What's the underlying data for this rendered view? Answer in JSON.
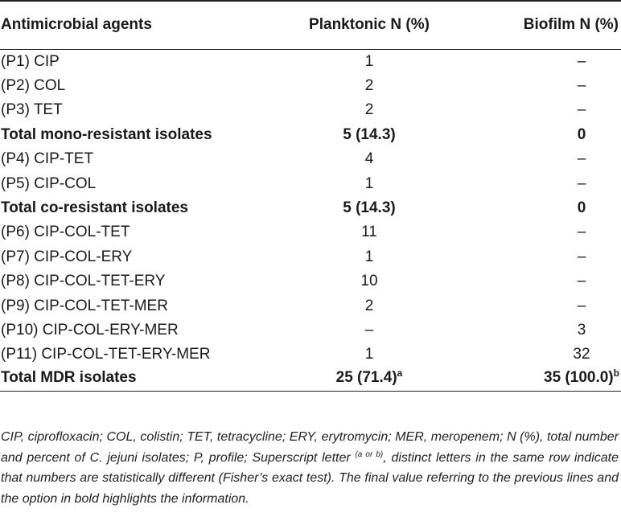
{
  "table": {
    "headers": [
      "Antimicrobial agents",
      "Planktonic N (%)",
      "Biofilm N (%)"
    ],
    "rows": [
      {
        "name": "(P1) CIP",
        "planktonic": "1",
        "biofilm": "–",
        "bold": false
      },
      {
        "name": "(P2) COL",
        "planktonic": "2",
        "biofilm": "–",
        "bold": false
      },
      {
        "name": "(P3) TET",
        "planktonic": "2",
        "biofilm": "–",
        "bold": false
      },
      {
        "name": "Total mono-resistant isolates",
        "planktonic": "5 (14.3)",
        "biofilm": "0",
        "bold": true
      },
      {
        "name": "(P4) CIP-TET",
        "planktonic": "4",
        "biofilm": "–",
        "bold": false
      },
      {
        "name": "(P5) CIP-COL",
        "planktonic": "1",
        "biofilm": "–",
        "bold": false
      },
      {
        "name": "Total co-resistant isolates",
        "planktonic": "5 (14.3)",
        "biofilm": "0",
        "bold": true
      },
      {
        "name": "(P6) CIP-COL-TET",
        "planktonic": "11",
        "biofilm": "–",
        "bold": false
      },
      {
        "name": "(P7) CIP-COL-ERY",
        "planktonic": "1",
        "biofilm": "–",
        "bold": false
      },
      {
        "name": "(P8) CIP-COL-TET-ERY",
        "planktonic": "10",
        "biofilm": "–",
        "bold": false
      },
      {
        "name": "(P9) CIP-COL-TET-MER",
        "planktonic": "2",
        "biofilm": "–",
        "bold": false
      },
      {
        "name": "(P10) CIP-COL-ERY-MER",
        "planktonic": "–",
        "biofilm": "3",
        "bold": false
      },
      {
        "name": "(P11) CIP-COL-TET-ERY-MER",
        "planktonic": "1",
        "biofilm": "32",
        "bold": false
      },
      {
        "name": "Total MDR isolates",
        "planktonic": "25 (71.4)",
        "planktonic_sup": "a",
        "biofilm": "35 (100.0)",
        "biofilm_sup": "b",
        "bold": true
      }
    ]
  },
  "footnote": {
    "part1": "CIP, ciprofloxacin; COL, colistin; TET, tetracycline; ERY, erytromycin; MER, meropenem; N (%), total number and percent of C. jejuni isolates; P, profile; Superscript letter ",
    "sup": "(a or b)",
    "part2": ", distinct letters in the same row indicate that numbers are statistically different (Fisher’s exact test). The final value referring to the previous lines and the option in bold highlights the information."
  }
}
